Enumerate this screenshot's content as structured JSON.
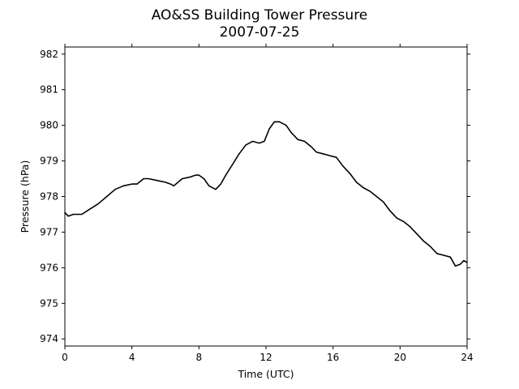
{
  "chart_data": {
    "type": "line",
    "title": "AO&SS Building Tower Pressure",
    "subtitle": "2007-07-25",
    "xlabel": "Time (UTC)",
    "ylabel": "Pressure (hPa)",
    "xlim": [
      0,
      24
    ],
    "ylim": [
      973.8,
      982.2
    ],
    "xticks": [
      0,
      4,
      8,
      12,
      16,
      20,
      24
    ],
    "yticks": [
      974,
      975,
      976,
      977,
      978,
      979,
      980,
      981,
      982
    ],
    "grid": false,
    "legend": "none",
    "line_color": "#000000",
    "series": [
      {
        "name": "",
        "x": [
          0,
          0.2,
          0.5,
          1.0,
          1.5,
          2.0,
          2.5,
          3.0,
          3.5,
          4.0,
          4.3,
          4.7,
          5.0,
          5.5,
          6.0,
          6.3,
          6.5,
          7.0,
          7.5,
          7.8,
          8.0,
          8.3,
          8.6,
          9.0,
          9.3,
          9.6,
          10.0,
          10.4,
          10.8,
          11.2,
          11.6,
          11.9,
          12.2,
          12.5,
          12.8,
          13.2,
          13.5,
          13.9,
          14.3,
          14.7,
          15.0,
          15.4,
          15.8,
          16.2,
          16.6,
          17.0,
          17.4,
          17.8,
          18.2,
          18.6,
          19.0,
          19.4,
          19.8,
          20.2,
          20.6,
          21.0,
          21.4,
          21.8,
          22.2,
          22.6,
          23.0,
          23.3,
          23.6,
          23.8,
          24.0
        ],
        "values": [
          977.55,
          977.45,
          977.5,
          977.5,
          977.65,
          977.8,
          978.0,
          978.2,
          978.3,
          978.35,
          978.35,
          978.5,
          978.5,
          978.45,
          978.4,
          978.35,
          978.3,
          978.5,
          978.55,
          978.6,
          978.6,
          978.5,
          978.3,
          978.2,
          978.35,
          978.6,
          978.9,
          979.2,
          979.45,
          979.55,
          979.5,
          979.55,
          979.9,
          980.1,
          980.1,
          980.0,
          979.8,
          979.6,
          979.55,
          979.4,
          979.25,
          979.2,
          979.15,
          979.1,
          978.85,
          978.65,
          978.4,
          978.25,
          978.15,
          978.0,
          977.85,
          977.6,
          977.4,
          977.3,
          977.15,
          976.95,
          976.75,
          976.6,
          976.4,
          976.35,
          976.3,
          976.05,
          976.1,
          976.2,
          976.15
        ]
      }
    ]
  }
}
